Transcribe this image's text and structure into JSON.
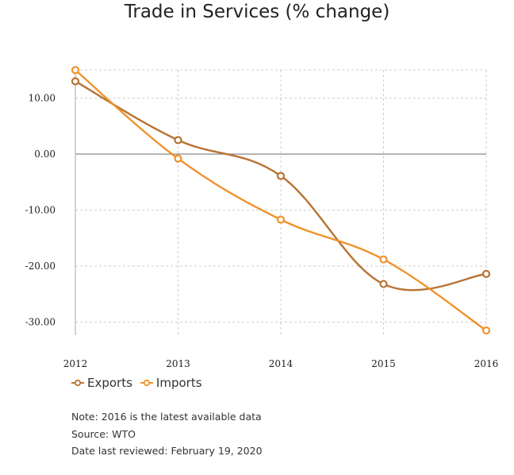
{
  "chart_data": {
    "type": "line",
    "title": "Trade in Services (% change)",
    "xlabel": "",
    "ylabel": "",
    "x": [
      "2012",
      "2013",
      "2014",
      "2015",
      "2016"
    ],
    "ylim": [
      -32,
      15
    ],
    "yticks": [
      10,
      0,
      -10,
      -20,
      -30
    ],
    "ytick_labels": [
      "10.00",
      "0.00",
      "-10.00",
      "-20.00",
      "-30.00"
    ],
    "grid": true,
    "legend_position": "bottom-left",
    "series": [
      {
        "name": "Exports",
        "color": "#b87333",
        "values": [
          13.0,
          2.5,
          -3.9,
          -23.2,
          -21.4
        ]
      },
      {
        "name": "Imports",
        "color": "#f0922b",
        "values": [
          15.0,
          -0.8,
          -11.7,
          -18.8,
          -31.5
        ]
      }
    ]
  },
  "notes": [
    "Note: 2016 is the latest available data",
    "Source: WTO",
    "Date last reviewed: February 19, 2020"
  ]
}
